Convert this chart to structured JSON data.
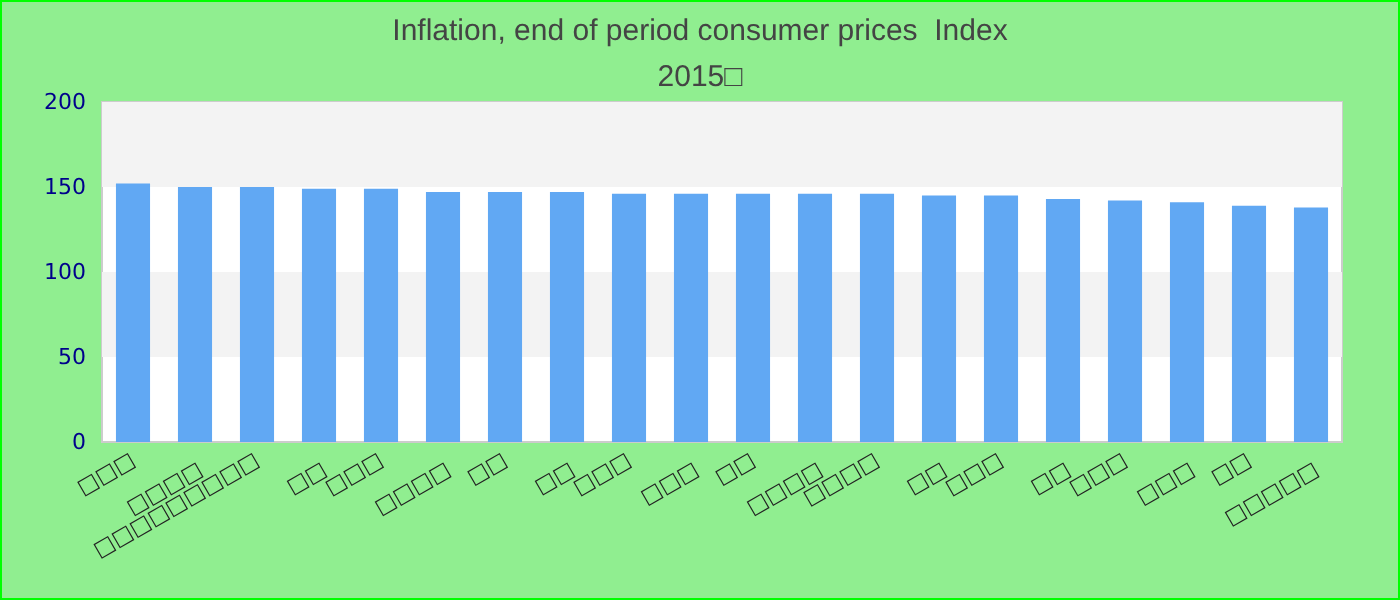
{
  "chart_data": {
    "type": "bar",
    "title": "Inflation, end of period consumer prices  Index",
    "subtitle": "2015□",
    "categories": [
      "□□□",
      "□□□□",
      "□□□□□□□□□",
      "□□",
      "□□□",
      "□□□□",
      "□□",
      "□□",
      "□□□",
      "□□□",
      "□□",
      "□□□□",
      "□□□□",
      "□□",
      "□□□",
      "□□",
      "□□□",
      "□□□",
      "□□",
      "□□□□□"
    ],
    "values": [
      152,
      150,
      150,
      149,
      149,
      147,
      147,
      147,
      146,
      146,
      146,
      146,
      146,
      145,
      145,
      143,
      142,
      141,
      139,
      138
    ],
    "color": "#61a8f3",
    "ylim": [
      0,
      200
    ],
    "yticks": [
      0,
      50,
      100,
      150,
      200
    ],
    "bands": [
      {
        "axis": "y",
        "from": 50,
        "to": 100,
        "color": "#f3f3f3"
      },
      {
        "axis": "y",
        "from": 150,
        "to": 200,
        "color": "#f3f3f3"
      }
    ]
  }
}
